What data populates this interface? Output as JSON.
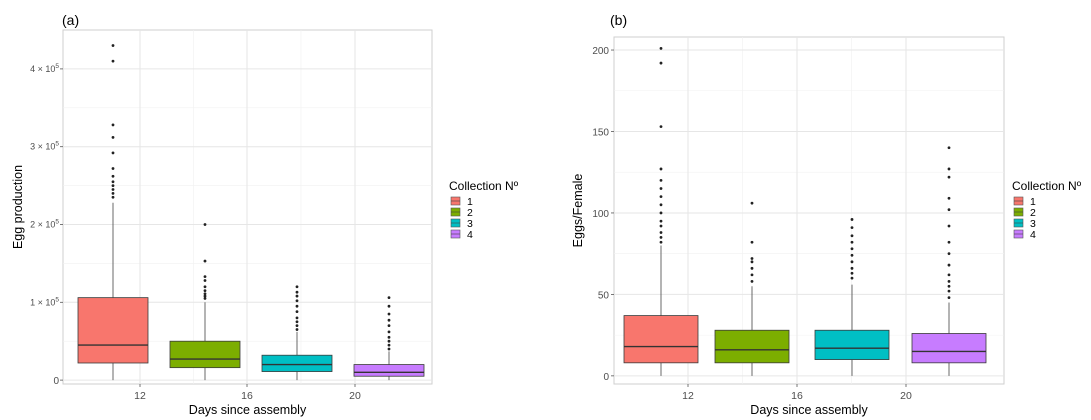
{
  "chart_data": [
    {
      "type": "boxplot",
      "panel_label": "(a)",
      "xlabel": "Days since assembly",
      "ylabel": "Egg production",
      "x_ticks": [
        "12",
        "16",
        "20"
      ],
      "y_ticks": [
        "0",
        "1 × 10^5",
        "2 × 10^5",
        "3 × 10^5",
        "4 × 10^5"
      ],
      "ylim": [
        -5000,
        450000
      ],
      "grid": true,
      "legend": {
        "title": "Collection Nº",
        "position": "right",
        "entries": [
          "1",
          "2",
          "3",
          "4"
        ]
      },
      "boxes": [
        {
          "collection": "1",
          "q1": 22000,
          "median": 45000,
          "q3": 106000,
          "whisker_low": 0,
          "whisker_high": 228000,
          "outliers": [
            235000,
            240000,
            245000,
            250000,
            255000,
            262000,
            272000,
            292000,
            312000,
            328000,
            410000,
            430000
          ]
        },
        {
          "collection": "2",
          "q1": 16000,
          "median": 27000,
          "q3": 50000,
          "whisker_low": 0,
          "whisker_high": 100000,
          "outliers": [
            105000,
            108000,
            111000,
            115000,
            120000,
            128000,
            133000,
            153000,
            200000
          ]
        },
        {
          "collection": "3",
          "q1": 11000,
          "median": 20000,
          "q3": 32000,
          "whisker_low": 0,
          "whisker_high": 62000,
          "outliers": [
            65000,
            70000,
            75000,
            80000,
            88000,
            95000,
            102000,
            108000,
            113000,
            120000
          ]
        },
        {
          "collection": "4",
          "q1": 5000,
          "median": 10000,
          "q3": 20000,
          "whisker_low": 0,
          "whisker_high": 37000,
          "outliers": [
            40000,
            45000,
            50000,
            55000,
            62000,
            70000,
            77000,
            85000,
            95000,
            106000
          ]
        }
      ]
    },
    {
      "type": "boxplot",
      "panel_label": "(b)",
      "xlabel": "Days since assembly",
      "ylabel": "Eggs/Female",
      "x_ticks": [
        "12",
        "16",
        "20"
      ],
      "y_ticks": [
        "0",
        "50",
        "100",
        "150",
        "200"
      ],
      "ylim": [
        -5,
        208
      ],
      "grid": true,
      "legend": {
        "title": "Collection Nº",
        "position": "right",
        "entries": [
          "1",
          "2",
          "3",
          "4"
        ]
      },
      "boxes": [
        {
          "collection": "1",
          "q1": 8,
          "median": 18,
          "q3": 37,
          "whisker_low": 0,
          "whisker_high": 80,
          "outliers": [
            82,
            85,
            88,
            92,
            95,
            100,
            105,
            110,
            115,
            120,
            127,
            153,
            192,
            201
          ]
        },
        {
          "collection": "2",
          "q1": 8,
          "median": 16,
          "q3": 28,
          "whisker_low": 0,
          "whisker_high": 55,
          "outliers": [
            58,
            62,
            66,
            70,
            72,
            82,
            106
          ]
        },
        {
          "collection": "3",
          "q1": 10,
          "median": 17,
          "q3": 28,
          "whisker_low": 0,
          "whisker_high": 56,
          "outliers": [
            60,
            63,
            66,
            70,
            74,
            78,
            82,
            86,
            91,
            96
          ]
        },
        {
          "collection": "4",
          "q1": 8,
          "median": 15,
          "q3": 26,
          "whisker_low": 0,
          "whisker_high": 45,
          "outliers": [
            48,
            52,
            55,
            58,
            62,
            68,
            75,
            82,
            92,
            102,
            109,
            122,
            127,
            140
          ]
        }
      ]
    }
  ],
  "colors": [
    "#f8766d",
    "#7cae00",
    "#00bfc4",
    "#c77cff"
  ]
}
